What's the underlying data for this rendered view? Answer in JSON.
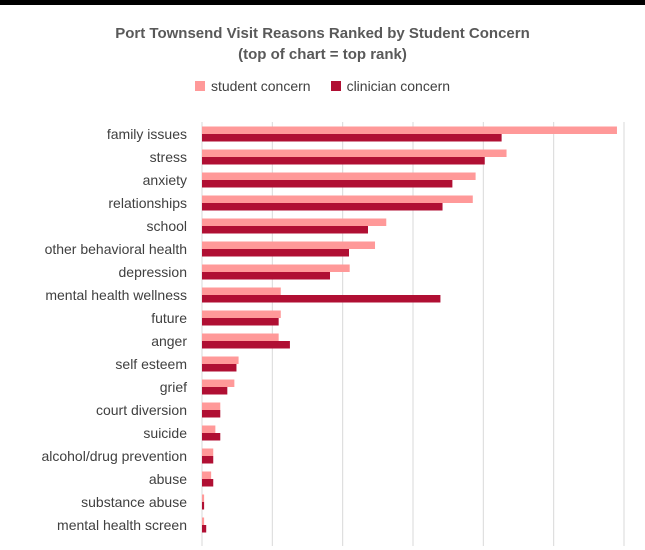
{
  "chart_data": {
    "type": "bar",
    "orientation": "horizontal",
    "title": "Port Townsend Visit Reasons Ranked by Student Concern",
    "subtitle": "(top of chart = top rank)",
    "legend_position": "top",
    "grid": true,
    "xlim": [
      0,
      60
    ],
    "x_gridlines": [
      0,
      10,
      20,
      30,
      40,
      50,
      60
    ],
    "categories": [
      "family issues",
      "stress",
      "anxiety",
      "relationships",
      "school",
      "other behavioral health",
      "depression",
      "mental health wellness",
      "future",
      "anger",
      "self esteem",
      "grief",
      "court diversion",
      "suicide",
      "alcohol/drug prevention",
      "abuse",
      "substance abuse",
      "mental health screen"
    ],
    "series": [
      {
        "name": "student concern",
        "color": "#ff9999",
        "values": [
          59.0,
          43.3,
          38.9,
          38.5,
          26.2,
          24.6,
          21.0,
          11.2,
          11.2,
          10.9,
          5.2,
          4.6,
          2.6,
          1.9,
          1.6,
          1.3,
          0.3,
          0.3
        ]
      },
      {
        "name": "clinician concern",
        "color": "#b00f33",
        "values": [
          42.6,
          40.2,
          35.6,
          34.2,
          23.6,
          20.9,
          18.2,
          33.9,
          10.9,
          12.5,
          4.9,
          3.6,
          2.6,
          2.6,
          1.6,
          1.6,
          0.3,
          0.6
        ]
      }
    ]
  }
}
